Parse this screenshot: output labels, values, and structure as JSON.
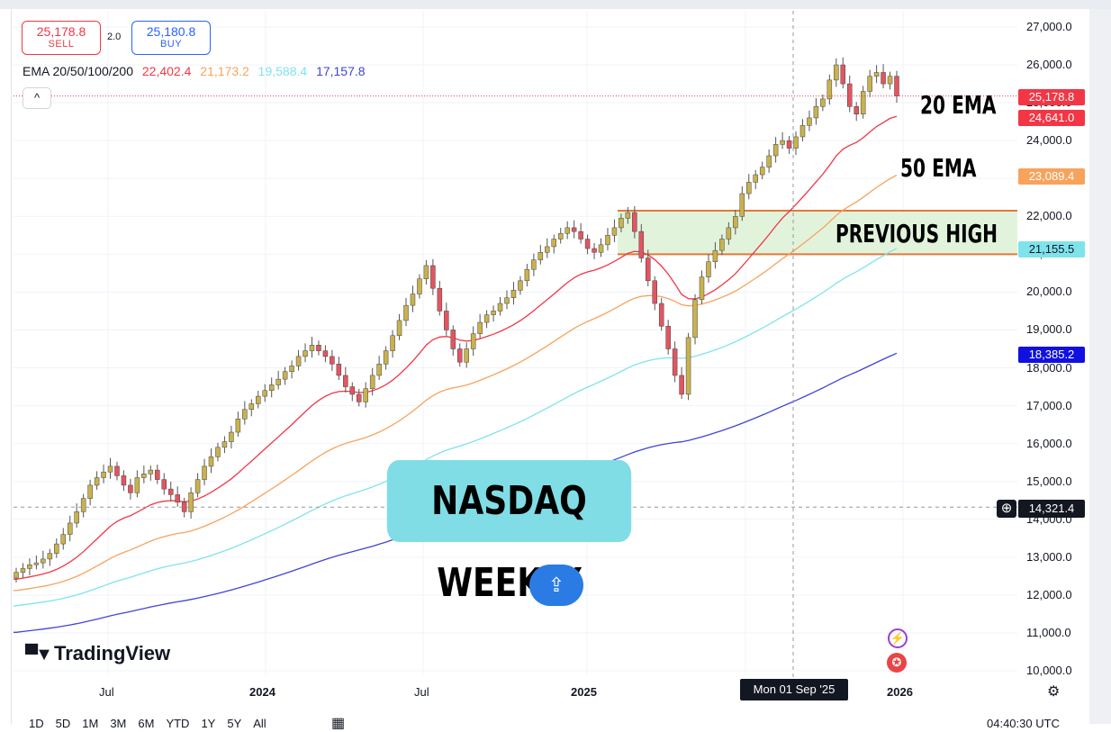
{
  "trade": {
    "sell_price": "25,178.8",
    "sell_label": "SELL",
    "spread": "2.0",
    "buy_price": "25,180.8",
    "buy_label": "BUY"
  },
  "legend": {
    "title": "EMA 20/50/100/200",
    "ema20": "22,402.4",
    "ema50": "21,173.2",
    "ema100": "19,588.4",
    "ema200": "17,157.8",
    "collapse": "^"
  },
  "colors": {
    "ema20": "#f23645",
    "ema50": "#f7a35c",
    "ema100": "#7fe3ec",
    "ema200": "#3f45d6",
    "up": "#c9b24e",
    "down": "#e25561",
    "box_fill": "#e2f3dc",
    "box_border": "#e07a3a"
  },
  "logo": "TradingView",
  "banner": "NASDAQ WEEKLY",
  "annotations": {
    "ema20": "20 EMA",
    "ema50": "50 EMA",
    "prev_high": "PREVIOUS HIGH"
  },
  "price_tags": {
    "last": "25,178.8",
    "ema20": "24,641.0",
    "ema50": "23,089.4",
    "ema100": "21,155.5",
    "ema200": "18,385.2",
    "crosshair": "14,321.4"
  },
  "crosshair_date": "Mon 01 Sep '25",
  "y_axis": [
    "27,000.0",
    "26,000.0",
    "25,000.0",
    "24,000.0",
    "23,000.0",
    "22,000.0",
    "21,000.0",
    "20,000.0",
    "19,000.0",
    "18,000.0",
    "17,000.0",
    "16,000.0",
    "15,000.0",
    "14,000.0",
    "13,000.0",
    "12,000.0",
    "11,000.0",
    "10,000.0"
  ],
  "x_axis": [
    {
      "label": "Jul",
      "year": false
    },
    {
      "label": "2024",
      "year": true
    },
    {
      "label": "Jul",
      "year": false
    },
    {
      "label": "2025",
      "year": true
    },
    {
      "label": "2026",
      "year": true
    }
  ],
  "timeframes": [
    "1D",
    "5D",
    "1M",
    "3M",
    "6M",
    "YTD",
    "1Y",
    "5Y",
    "All"
  ],
  "clock": "04:40:30 UTC",
  "chart_data": {
    "type": "candlestick",
    "title": "NASDAQ WEEKLY",
    "ylim": [
      10000,
      27000
    ],
    "previous_high_zone": [
      21000,
      22150
    ],
    "closes": [
      12600,
      12700,
      12800,
      12850,
      12950,
      13100,
      13350,
      13600,
      13900,
      14200,
      14550,
      14900,
      15100,
      15250,
      15400,
      15150,
      14900,
      14700,
      15100,
      15200,
      15300,
      15050,
      14800,
      14650,
      14450,
      14200,
      14700,
      15050,
      15400,
      15650,
      15900,
      16050,
      16300,
      16650,
      16900,
      17050,
      17250,
      17400,
      17550,
      17700,
      17900,
      18050,
      18300,
      18450,
      18600,
      18450,
      18300,
      18100,
      17800,
      17500,
      17300,
      17100,
      17450,
      17800,
      18100,
      18450,
      18850,
      19250,
      19650,
      19950,
      20350,
      20700,
      20100,
      19500,
      19000,
      18500,
      18150,
      18500,
      18900,
      19200,
      19400,
      19500,
      19700,
      19850,
      20050,
      20300,
      20600,
      20850,
      21050,
      21200,
      21400,
      21550,
      21700,
      21600,
      21400,
      21150,
      21050,
      21250,
      21500,
      21700,
      21950,
      22100,
      21600,
      20900,
      20300,
      19700,
      19100,
      18500,
      17800,
      17300,
      18800,
      19800,
      20400,
      20800,
      21100,
      21400,
      21700,
      22000,
      22600,
      22900,
      23100,
      23300,
      23600,
      23900,
      24000,
      23800,
      24100,
      24400,
      24600,
      24900,
      25100,
      25600,
      26000,
      25500,
      24900,
      24700,
      25300,
      25700,
      25800,
      25500,
      25700,
      25178.8
    ],
    "ema20_last": 24641.0,
    "ema50_last": 23089.4,
    "ema100_last": 21155.5,
    "ema200_last": 18385.2
  }
}
